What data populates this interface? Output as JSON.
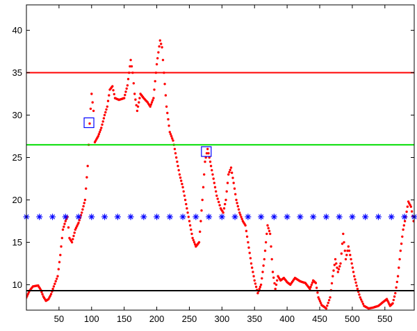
{
  "chart_data": {
    "type": "scatter",
    "xlim": [
      0,
      595
    ],
    "ylim": [
      7,
      43
    ],
    "x_ticks": [
      50,
      100,
      150,
      200,
      250,
      300,
      350,
      400,
      450,
      500,
      550
    ],
    "y_ticks": [
      10,
      15,
      20,
      25,
      30,
      35,
      40
    ],
    "grid": false,
    "signal": {
      "color": "#ff0000",
      "marker": "dot",
      "anchors": [
        [
          0,
          8.5
        ],
        [
          5,
          9.3
        ],
        [
          10,
          9.8
        ],
        [
          18,
          9.9
        ],
        [
          22,
          9.4
        ],
        [
          26,
          8.6
        ],
        [
          30,
          8.1
        ],
        [
          34,
          8.3
        ],
        [
          38,
          8.9
        ],
        [
          42,
          9.8
        ],
        [
          48,
          11.0
        ],
        [
          52,
          13.5
        ],
        [
          56,
          16.5
        ],
        [
          60,
          17.5
        ],
        [
          63,
          18.0
        ],
        [
          66,
          15.5
        ],
        [
          70,
          15.0
        ],
        [
          75,
          16.5
        ],
        [
          80,
          17.3
        ],
        [
          85,
          18.5
        ],
        [
          90,
          20.0
        ],
        [
          94,
          24.0
        ],
        [
          97,
          29.0
        ],
        [
          100,
          32.5
        ],
        [
          103,
          30.5
        ],
        [
          105,
          26.8
        ],
        [
          110,
          27.5
        ],
        [
          115,
          28.5
        ],
        [
          120,
          30.0
        ],
        [
          124,
          31.0
        ],
        [
          128,
          33.0
        ],
        [
          132,
          33.4
        ],
        [
          136,
          32.0
        ],
        [
          142,
          31.8
        ],
        [
          150,
          32.0
        ],
        [
          155,
          33.5
        ],
        [
          160,
          36.5
        ],
        [
          163,
          35.0
        ],
        [
          166,
          32.5
        ],
        [
          170,
          30.5
        ],
        [
          175,
          32.5
        ],
        [
          180,
          32.0
        ],
        [
          186,
          31.5
        ],
        [
          190,
          31.0
        ],
        [
          195,
          32.0
        ],
        [
          200,
          36.0
        ],
        [
          205,
          38.8
        ],
        [
          208,
          38.0
        ],
        [
          211,
          35.0
        ],
        [
          215,
          31.0
        ],
        [
          220,
          28.0
        ],
        [
          225,
          27.0
        ],
        [
          230,
          25.0
        ],
        [
          235,
          23.0
        ],
        [
          240,
          21.5
        ],
        [
          245,
          19.5
        ],
        [
          250,
          17.5
        ],
        [
          255,
          15.5
        ],
        [
          260,
          14.5
        ],
        [
          265,
          15.0
        ],
        [
          270,
          20.0
        ],
        [
          274,
          24.5
        ],
        [
          278,
          26.0
        ],
        [
          282,
          24.5
        ],
        [
          287,
          22.5
        ],
        [
          292,
          20.5
        ],
        [
          298,
          19.0
        ],
        [
          302,
          18.5
        ],
        [
          306,
          20.0
        ],
        [
          310,
          23.0
        ],
        [
          314,
          23.8
        ],
        [
          318,
          22.0
        ],
        [
          322,
          20.0
        ],
        [
          327,
          18.5
        ],
        [
          332,
          17.5
        ],
        [
          336,
          17.0
        ],
        [
          340,
          15.0
        ],
        [
          345,
          12.5
        ],
        [
          350,
          10.5
        ],
        [
          355,
          9.0
        ],
        [
          360,
          10.0
        ],
        [
          365,
          13.0
        ],
        [
          370,
          17.0
        ],
        [
          374,
          16.0
        ],
        [
          378,
          11.5
        ],
        [
          382,
          9.5
        ],
        [
          386,
          11.0
        ],
        [
          390,
          10.5
        ],
        [
          395,
          10.8
        ],
        [
          400,
          10.3
        ],
        [
          405,
          10.0
        ],
        [
          412,
          10.8
        ],
        [
          420,
          10.4
        ],
        [
          428,
          10.2
        ],
        [
          435,
          9.5
        ],
        [
          440,
          10.5
        ],
        [
          444,
          10.2
        ],
        [
          448,
          8.5
        ],
        [
          453,
          7.6
        ],
        [
          460,
          7.2
        ],
        [
          466,
          8.5
        ],
        [
          470,
          11.0
        ],
        [
          474,
          13.0
        ],
        [
          478,
          11.5
        ],
        [
          482,
          12.5
        ],
        [
          486,
          16.0
        ],
        [
          490,
          13.0
        ],
        [
          494,
          14.5
        ],
        [
          498,
          13.0
        ],
        [
          503,
          11.0
        ],
        [
          508,
          9.5
        ],
        [
          512,
          8.5
        ],
        [
          518,
          7.5
        ],
        [
          525,
          7.2
        ],
        [
          532,
          7.3
        ],
        [
          540,
          7.5
        ],
        [
          548,
          8.0
        ],
        [
          553,
          8.3
        ],
        [
          558,
          7.5
        ],
        [
          562,
          7.8
        ],
        [
          566,
          9.0
        ],
        [
          570,
          11.0
        ],
        [
          574,
          14.0
        ],
        [
          578,
          16.5
        ],
        [
          582,
          18.0
        ],
        [
          586,
          19.8
        ],
        [
          590,
          19.2
        ],
        [
          594,
          17.5
        ]
      ]
    },
    "reference_lines": [
      {
        "y": 35.0,
        "color": "#ff0000"
      },
      {
        "y": 26.5,
        "color": "#00dd00"
      },
      {
        "y": 9.3,
        "color": "#000000"
      }
    ],
    "star_series": {
      "y": 18.0,
      "color": "#0000ff",
      "marker": "*",
      "x": [
        0,
        20,
        40,
        60,
        80,
        100,
        120,
        140,
        160,
        180,
        200,
        220,
        240,
        260,
        280,
        300,
        320,
        340,
        360,
        380,
        400,
        420,
        440,
        460,
        480,
        500,
        520,
        540,
        560,
        580,
        595
      ]
    },
    "marked_points": {
      "color": "#0000ff",
      "marker": "square",
      "points": [
        [
          96,
          29.1
        ],
        [
          276,
          25.7
        ]
      ]
    }
  }
}
